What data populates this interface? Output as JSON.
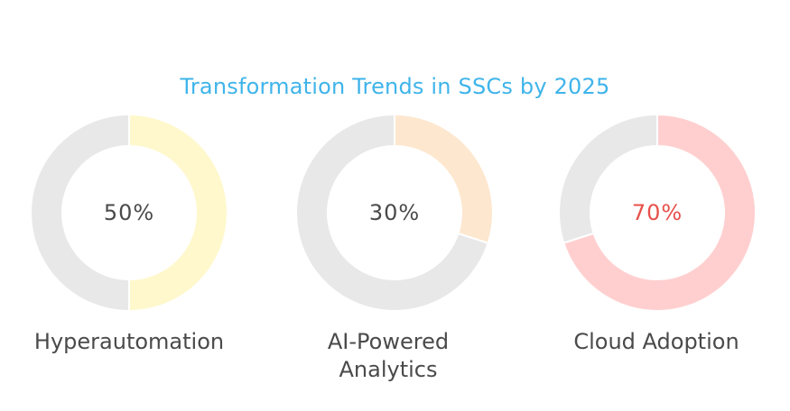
{
  "chart_data": {
    "type": "pie",
    "title": "Transformation Trends in SSCs by 2025",
    "charts": [
      {
        "label": "Hyperautomation",
        "value": 50,
        "display": "50%",
        "color": "#fff8cc",
        "text_color": "#4a4a4a"
      },
      {
        "label": "AI-Powered\nAnalytics",
        "value": 30,
        "display": "30%",
        "color": "#fde7cf",
        "text_color": "#4a4a4a"
      },
      {
        "label": "Cloud Adoption",
        "value": 70,
        "display": "70%",
        "color": "#ffcfcf",
        "text_color": "#e8504a"
      }
    ],
    "track_color": "#e8e8e8"
  }
}
